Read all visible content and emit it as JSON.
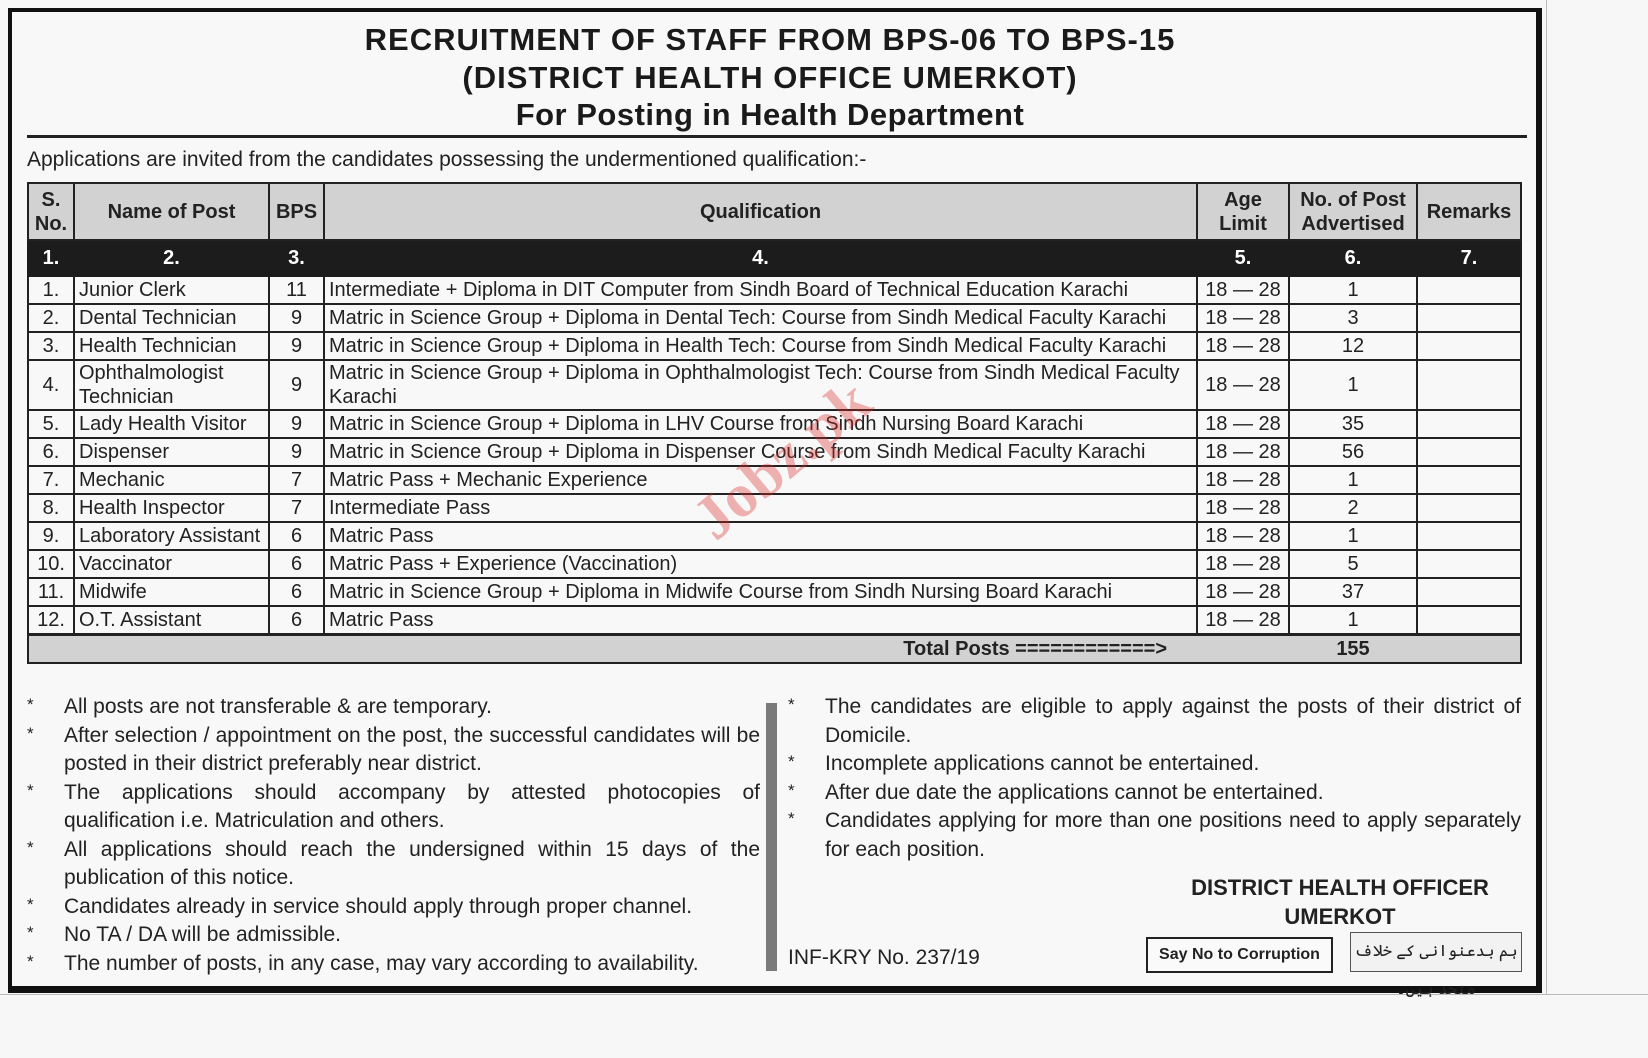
{
  "header": {
    "title_line1": "RECRUITMENT OF STAFF FROM BPS-06 TO BPS-15",
    "title_line2": "(DISTRICT HEALTH OFFICE UMERKOT)",
    "title_line3": "For Posting in Health Department",
    "intro": "Applications are invited from the candidates possessing the undermentioned qualification:-"
  },
  "table": {
    "headers": [
      "S. No.",
      "Name of Post",
      "BPS",
      "Qualification",
      "Age Limit",
      "No. of Post Advertised",
      "Remarks"
    ],
    "column_numbers": [
      "1.",
      "2.",
      "3.",
      "4.",
      "5.",
      "6.",
      "7."
    ],
    "rows": [
      {
        "sno": "1.",
        "post": "Junior Clerk",
        "bps": "11",
        "qualification": "Intermediate + Diploma in DIT Computer from Sindh Board of Technical Education Karachi",
        "age": "18 — 28",
        "posts": "1",
        "remarks": ""
      },
      {
        "sno": "2.",
        "post": "Dental Technician",
        "bps": "9",
        "qualification": "Matric in Science Group + Diploma in Dental Tech: Course from Sindh Medical Faculty Karachi",
        "age": "18 — 28",
        "posts": "3",
        "remarks": ""
      },
      {
        "sno": "3.",
        "post": "Health Technician",
        "bps": "9",
        "qualification": "Matric in Science Group + Diploma in Health Tech: Course from Sindh Medical Faculty Karachi",
        "age": "18 — 28",
        "posts": "12",
        "remarks": ""
      },
      {
        "sno": "4.",
        "post": "Ophthalmologist Technician",
        "bps": "9",
        "qualification": "Matric in Science Group + Diploma in Ophthalmologist Tech: Course from Sindh Medical Faculty Karachi",
        "age": "18 — 28",
        "posts": "1",
        "remarks": ""
      },
      {
        "sno": "5.",
        "post": "Lady Health Visitor",
        "bps": "9",
        "qualification": "Matric in Science Group + Diploma in LHV Course from Sindh Nursing Board Karachi",
        "age": "18 — 28",
        "posts": "35",
        "remarks": ""
      },
      {
        "sno": "6.",
        "post": "Dispenser",
        "bps": "9",
        "qualification": "Matric in Science Group + Diploma in Dispenser Course from Sindh Medical Faculty Karachi",
        "age": "18 — 28",
        "posts": "56",
        "remarks": ""
      },
      {
        "sno": "7.",
        "post": "Mechanic",
        "bps": "7",
        "qualification": "Matric Pass + Mechanic Experience",
        "age": "18 — 28",
        "posts": "1",
        "remarks": ""
      },
      {
        "sno": "8.",
        "post": "Health Inspector",
        "bps": "7",
        "qualification": "Intermediate Pass",
        "age": "18 — 28",
        "posts": "2",
        "remarks": ""
      },
      {
        "sno": "9.",
        "post": "Laboratory Assistant",
        "bps": "6",
        "qualification": "Matric Pass",
        "age": "18 — 28",
        "posts": "1",
        "remarks": ""
      },
      {
        "sno": "10.",
        "post": "Vaccinator",
        "bps": "6",
        "qualification": "Matric Pass + Experience (Vaccination)",
        "age": "18 — 28",
        "posts": "5",
        "remarks": ""
      },
      {
        "sno": "11.",
        "post": "Midwife",
        "bps": "6",
        "qualification": "Matric in Science Group + Diploma in Midwife Course from Sindh Nursing Board Karachi",
        "age": "18 — 28",
        "posts": "37",
        "remarks": ""
      },
      {
        "sno": "12.",
        "post": "O.T. Assistant",
        "bps": "6",
        "qualification": "Matric Pass",
        "age": "18 — 28",
        "posts": "1",
        "remarks": ""
      }
    ],
    "total_label": "Total Posts  ============>",
    "total_value": "155"
  },
  "notes_left": [
    "All posts are not transferable & are temporary.",
    "After selection / appointment on the post, the successful candidates will be posted in their district preferably near district.",
    "The applications should accompany by attested photocopies of qualification i.e. Matriculation and others.",
    "All applications should reach the undersigned within 15 days of the publication of this notice.",
    "Candidates already in service should apply through proper channel.",
    "No TA / DA will be admissible.",
    "The number of posts, in any case, may vary according to availability."
  ],
  "notes_right": [
    "The candidates are eligible to apply against the posts of their district of Domicile.",
    "Incomplete applications cannot be entertained.",
    "After due date the applications cannot be entertained.",
    "Candidates applying for more than one positions need to apply separately for each position."
  ],
  "bullet_symbol": "*",
  "footer": {
    "signer_line1": "DISTRICT HEALTH OFFICER",
    "signer_line2": "UMERKOT",
    "reference": "INF-KRY No. 237/19",
    "slogan_en": "Say No to Corruption",
    "slogan_ur": "ہم بدعنوانی کے خلاف متحد ہیں۔"
  },
  "watermark": "Jobz.pk",
  "colors": {
    "header_bg": "#d2d2d2",
    "number_row_bg": "#1c1c1c",
    "watermark": "#dc2828"
  }
}
